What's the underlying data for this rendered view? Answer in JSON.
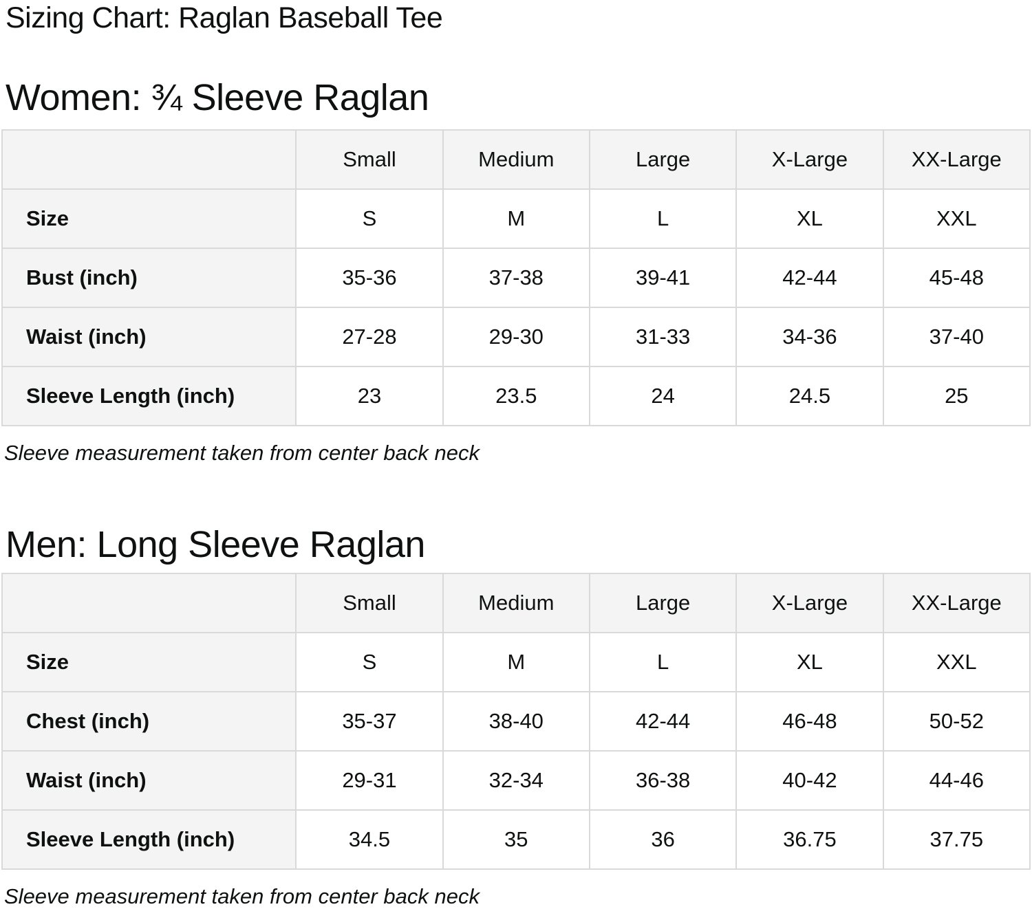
{
  "page": {
    "title": "Sizing Chart: Raglan Baseball Tee"
  },
  "colors": {
    "text": "#0f1111",
    "table_border": "#d9d9d9",
    "header_cell_bg": "#f4f4f4",
    "data_cell_bg": "#ffffff"
  },
  "sections": [
    {
      "heading": "Women: ¾ Sleeve Raglan",
      "note": "Sleeve measurement taken from center back neck",
      "table": {
        "column_headers": [
          "",
          "Small",
          "Medium",
          "Large",
          "X-Large",
          "XX-Large"
        ],
        "rows": [
          {
            "label": "Size",
            "values": [
              "S",
              "M",
              "L",
              "XL",
              "XXL"
            ]
          },
          {
            "label": "Bust (inch)",
            "values": [
              "35-36",
              "37-38",
              "39-41",
              "42-44",
              "45-48"
            ]
          },
          {
            "label": "Waist (inch)",
            "values": [
              "27-28",
              "29-30",
              "31-33",
              "34-36",
              "37-40"
            ]
          },
          {
            "label": "Sleeve Length (inch)",
            "values": [
              "23",
              "23.5",
              "24",
              "24.5",
              "25"
            ]
          }
        ]
      }
    },
    {
      "heading": "Men: Long Sleeve Raglan",
      "note": "Sleeve measurement taken from center back neck",
      "table": {
        "column_headers": [
          "",
          "Small",
          "Medium",
          "Large",
          "X-Large",
          "XX-Large"
        ],
        "rows": [
          {
            "label": "Size",
            "values": [
              "S",
              "M",
              "L",
              "XL",
              "XXL"
            ]
          },
          {
            "label": "Chest (inch)",
            "values": [
              "35-37",
              "38-40",
              "42-44",
              "46-48",
              "50-52"
            ]
          },
          {
            "label": "Waist (inch)",
            "values": [
              "29-31",
              "32-34",
              "36-38",
              "40-42",
              "44-46"
            ]
          },
          {
            "label": "Sleeve Length (inch)",
            "values": [
              "34.5",
              "35",
              "36",
              "36.75",
              "37.75"
            ]
          }
        ]
      }
    }
  ]
}
